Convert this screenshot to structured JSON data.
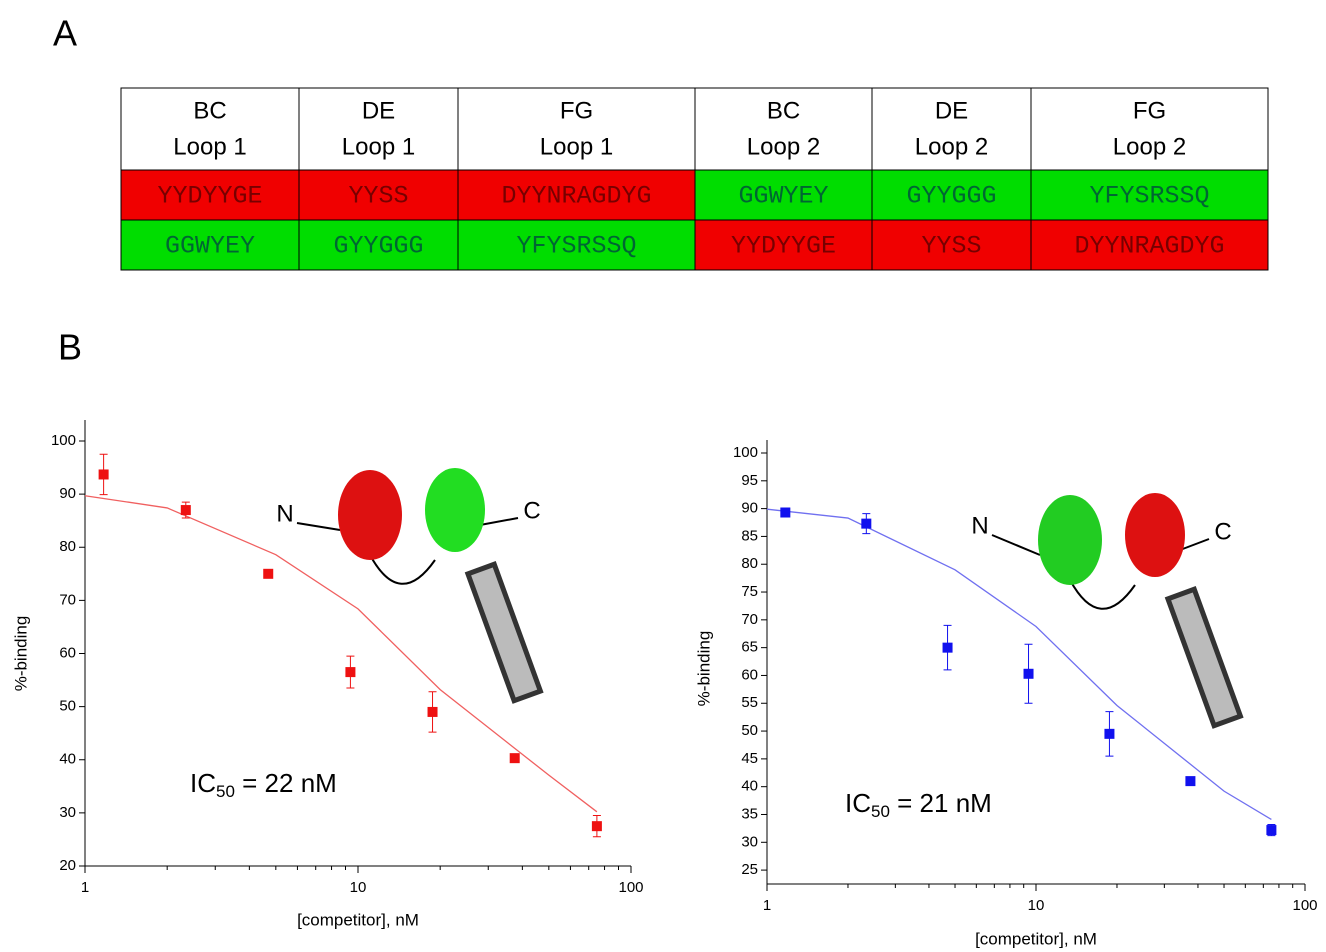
{
  "panels": [
    "A",
    "B"
  ],
  "table": {
    "header": [
      [
        "BC",
        "Loop 1"
      ],
      [
        "DE",
        "Loop 1"
      ],
      [
        "FG",
        "Loop 1"
      ],
      [
        "BC",
        "Loop 2"
      ],
      [
        "DE",
        "Loop 2"
      ],
      [
        "FG",
        "Loop 2"
      ]
    ],
    "rows": [
      {
        "cells": [
          "YYDYYGE",
          "YYSS",
          "DYYNRAGDYG",
          "GGWYEY",
          "GYYGGG",
          "YFYSRSSQ"
        ],
        "colors": [
          "#f00000",
          "#f00000",
          "#f00000",
          "#00dd00",
          "#00dd00",
          "#00dd00"
        ]
      },
      {
        "cells": [
          "GGWYEY",
          "GYYGGG",
          "YFYSRSSQ",
          "YYDYYGE",
          "YYSS",
          "DYYNRAGDYG"
        ],
        "colors": [
          "#00dd00",
          "#00dd00",
          "#00dd00",
          "#f00000",
          "#f00000",
          "#f00000"
        ]
      }
    ]
  },
  "chart_data": [
    {
      "type": "scatter",
      "x_label": "[competitor], nM",
      "y_label": "%-binding",
      "x_log": true,
      "xlim": [
        1,
        100
      ],
      "xticks": [
        1,
        10,
        100
      ],
      "ylim": [
        20,
        100
      ],
      "yticks": [
        20,
        30,
        40,
        50,
        60,
        70,
        80,
        90,
        100
      ],
      "series": [
        {
          "color": "#ee1111",
          "x": [
            1.17,
            2.34,
            4.69,
            9.38,
            18.75,
            37.5,
            75
          ],
          "values": [
            93.7,
            87,
            75,
            56.5,
            49,
            40.3,
            27.5
          ],
          "errors": [
            3.8,
            1.5,
            0,
            3,
            3.8,
            0.5,
            2
          ]
        }
      ],
      "fit": {
        "color": "#f06060",
        "x": [
          1,
          2,
          5,
          10,
          20,
          50,
          75
        ],
        "values": [
          89.7,
          87.4,
          78.6,
          68.4,
          53.2,
          37.1,
          30.2
        ]
      },
      "ic_label": {
        "text": "IC",
        "sub": "50",
        "rest": " = 22 nM"
      },
      "terminals": [
        "N",
        "C"
      ]
    },
    {
      "type": "scatter",
      "x_label": "[competitor], nM",
      "y_label": "%-binding",
      "x_log": true,
      "xlim": [
        1,
        100
      ],
      "xticks": [
        1,
        10,
        100
      ],
      "ylim": [
        22.5,
        100
      ],
      "yticks": [
        25,
        30,
        35,
        40,
        45,
        50,
        55,
        60,
        65,
        70,
        75,
        80,
        85,
        90,
        95,
        100
      ],
      "series": [
        {
          "color": "#1111ee",
          "x": [
            1.17,
            2.34,
            4.69,
            9.38,
            18.75,
            37.5,
            75
          ],
          "values": [
            89.3,
            87.3,
            65,
            60.3,
            49.5,
            41,
            32.2
          ],
          "errors": [
            0.8,
            1.8,
            4,
            5.3,
            4,
            0.5,
            1
          ]
        }
      ],
      "fit": {
        "color": "#7070f0",
        "x": [
          1,
          2,
          5,
          10,
          20,
          50,
          75
        ],
        "values": [
          89.9,
          88.3,
          79,
          68.8,
          54.6,
          39.2,
          34.1
        ]
      },
      "ic_label": {
        "text": "IC",
        "sub": "50",
        "rest": " = 21 nM"
      },
      "terminals": [
        "N",
        "C"
      ]
    }
  ]
}
